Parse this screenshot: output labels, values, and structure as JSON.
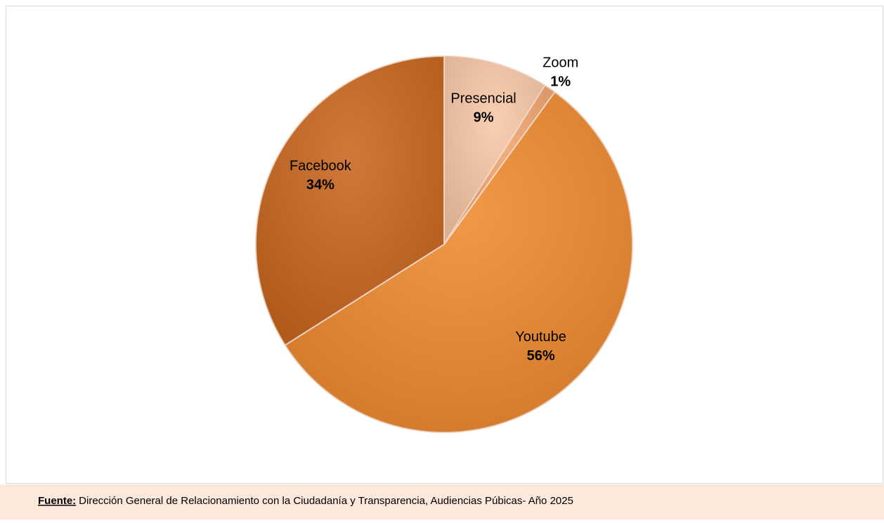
{
  "chart_data": {
    "type": "pie",
    "categories": [
      "Presencial",
      "Zoom",
      "Youtube",
      "Facebook"
    ],
    "values": [
      9,
      1,
      56,
      34
    ],
    "value_labels": [
      "9%",
      "1%",
      "56%",
      "34%"
    ],
    "colors": [
      "#f9c8a6",
      "#f2a56e",
      "#f08a30",
      "#c8661f"
    ],
    "source_label": "Fuente:",
    "source": "Dirección General de Relacionamiento con la Ciudadanía y Transparencia, Audiencias Púbicas- Año 2025"
  }
}
